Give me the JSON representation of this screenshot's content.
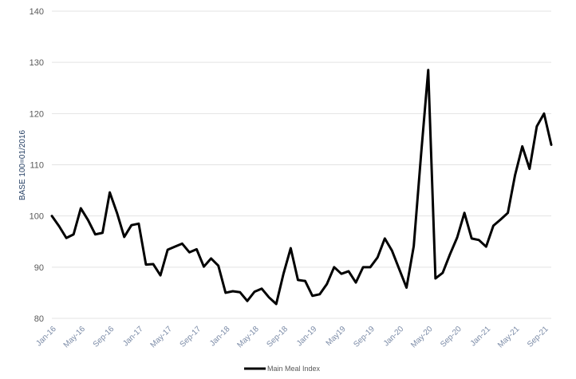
{
  "chart_data": {
    "type": "line",
    "ylabel": "BASE 100=01/2016",
    "ylim": [
      80,
      140
    ],
    "yticks": [
      80,
      90,
      100,
      110,
      120,
      130,
      140
    ],
    "grid": true,
    "legend_position": "bottom",
    "xtick_labels": [
      "Jan-16",
      "May-16",
      "Sep-16",
      "Jan-17",
      "May-17",
      "Sep-17",
      "Jan-18",
      "May-18",
      "Sep-18",
      "Jan-19",
      "May19",
      "Sep-19",
      "Jan-20",
      "May-20",
      "Sep-20",
      "Jan-21",
      "May-21",
      "Sep-21"
    ],
    "x": [
      "Jan-16",
      "Feb-16",
      "Mar-16",
      "Apr-16",
      "May-16",
      "Jun-16",
      "Jul-16",
      "Aug-16",
      "Sep-16",
      "Oct-16",
      "Nov-16",
      "Dec-16",
      "Jan-17",
      "Feb-17",
      "Mar-17",
      "Apr-17",
      "May-17",
      "Jun-17",
      "Jul-17",
      "Aug-17",
      "Sep-17",
      "Oct-17",
      "Nov-17",
      "Dec-17",
      "Jan-18",
      "Feb-18",
      "Mar-18",
      "Apr-18",
      "May-18",
      "Jun-18",
      "Jul-18",
      "Aug-18",
      "Sep-18",
      "Oct-18",
      "Nov-18",
      "Dec-18",
      "Jan-19",
      "Feb-19",
      "Mar-19",
      "Apr-19",
      "May-19",
      "Jun-19",
      "Jul-19",
      "Aug-19",
      "Sep-19",
      "Oct-19",
      "Nov-19",
      "Dec-19",
      "Jan-20",
      "Feb-20",
      "Mar-20",
      "Apr-20",
      "May-20",
      "Jun-20",
      "Jul-20",
      "Aug-20",
      "Sep-20",
      "Oct-20",
      "Nov-20",
      "Dec-20",
      "Jan-21",
      "Feb-21",
      "Mar-21",
      "Apr-21",
      "May-21",
      "Jun-21",
      "Jul-21",
      "Aug-21",
      "Sep-21",
      "Oct-21"
    ],
    "series": [
      {
        "name": "Main Meal Index",
        "color": "#000000",
        "values": [
          100.0,
          98.0,
          95.7,
          96.4,
          101.5,
          99.2,
          96.4,
          96.7,
          104.6,
          100.6,
          95.9,
          98.2,
          98.5,
          90.5,
          90.6,
          88.4,
          93.4,
          94.0,
          94.6,
          92.9,
          93.5,
          90.1,
          91.7,
          90.3,
          85.0,
          85.3,
          85.1,
          83.4,
          85.2,
          85.8,
          84.1,
          82.8,
          88.7,
          93.7,
          87.5,
          87.3,
          84.4,
          84.7,
          86.7,
          90.0,
          88.7,
          89.2,
          87.0,
          90.0,
          90.0,
          91.9,
          95.6,
          93.2,
          89.6,
          86.0,
          94.1,
          111.8,
          128.5,
          87.8,
          88.9,
          92.5,
          95.8,
          100.6,
          95.6,
          95.3,
          94.0,
          98.1,
          99.3,
          100.6,
          108.0,
          113.6,
          109.2,
          117.5,
          120.0,
          113.9
        ]
      }
    ]
  }
}
